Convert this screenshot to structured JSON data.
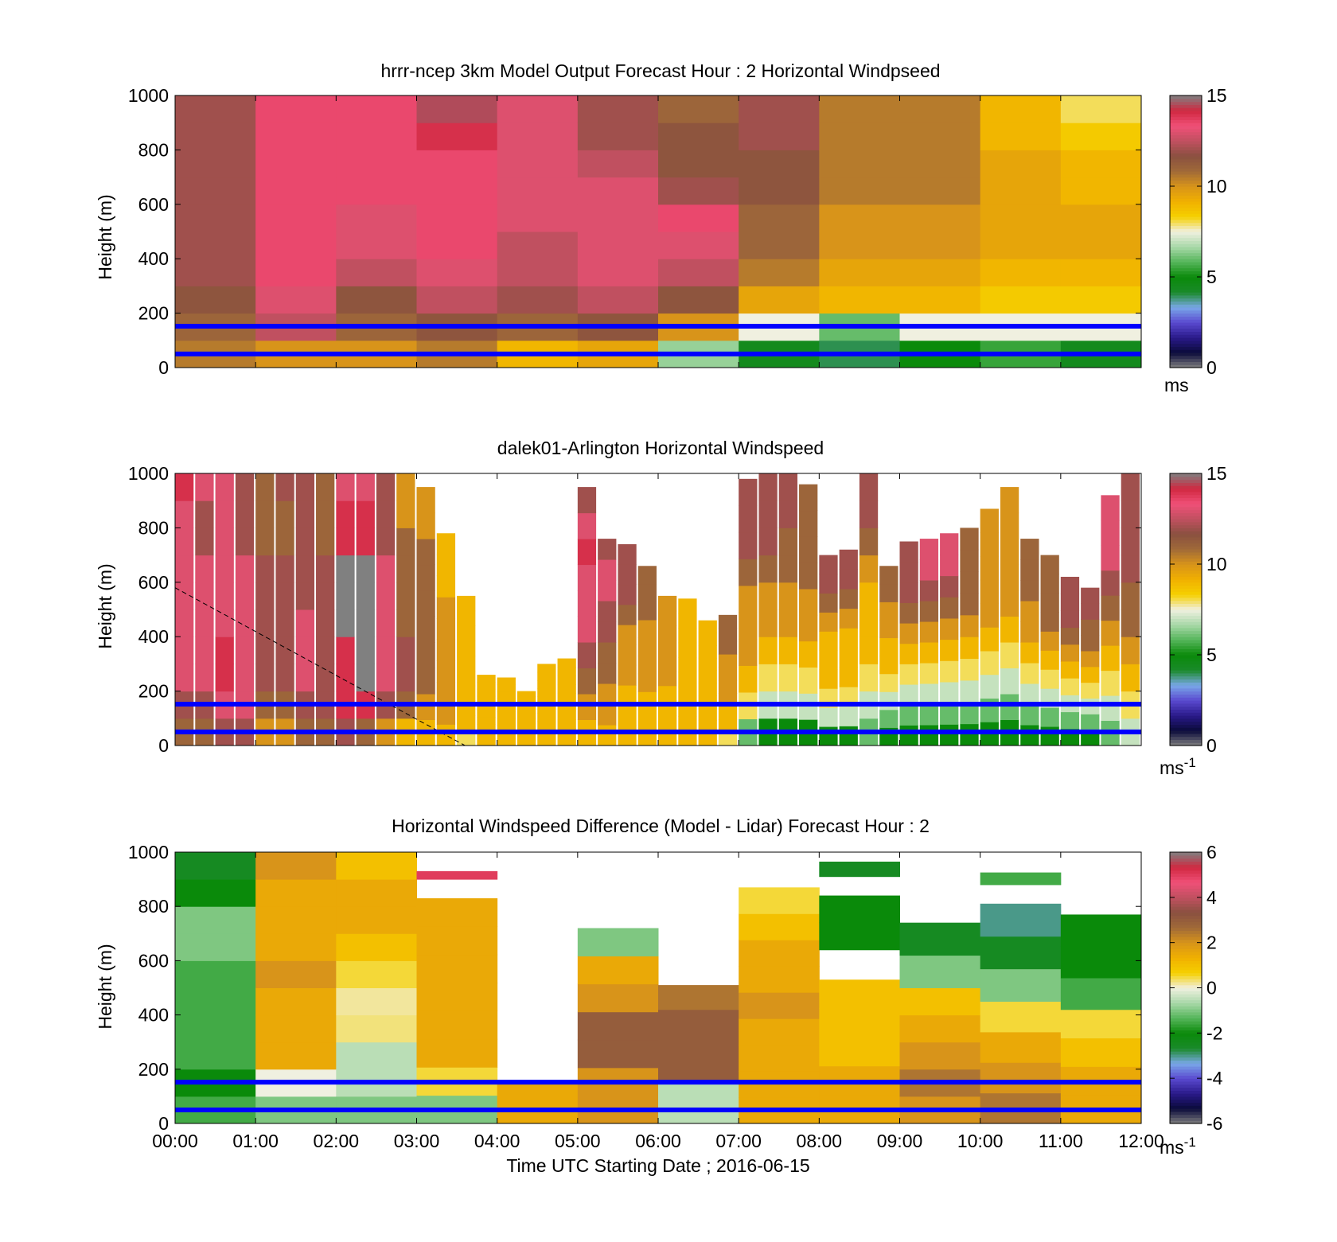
{
  "figure": {
    "xlabel": "Time UTC  Starting Date ; 2016-06-15",
    "x_ticks": [
      "00:00",
      "01:00",
      "02:00",
      "03:00",
      "04:00",
      "05:00",
      "06:00",
      "07:00",
      "08:00",
      "09:00",
      "10:00",
      "11:00",
      "12:00"
    ]
  },
  "colormap": [
    "#808080",
    "#0a0a3a",
    "#2a1a8a",
    "#5a4ad0",
    "#7aa8e8",
    "#1a8a2a",
    "#0a8a0a",
    "#55b55a",
    "#a8d8a8",
    "#f0f0e0",
    "#f5d000",
    "#f0b000",
    "#d8941a",
    "#a06a38",
    "#8a5040",
    "#c05060",
    "#f05078",
    "#d02840",
    "#808080"
  ],
  "chart_data": [
    {
      "type": "heatmap",
      "title": "hrrr-ncep 3km Model Output   Forecast Hour : 2 Horizontal Windpseed",
      "ylabel": "Height (m)",
      "xlim": [
        0,
        12
      ],
      "ylim": [
        0,
        1000
      ],
      "y_ticks": [
        0,
        200,
        400,
        600,
        800,
        1000
      ],
      "colorbar": {
        "ticks": [
          0,
          5,
          10,
          15
        ],
        "range": [
          0,
          15
        ],
        "unit": "ms"
      },
      "reference_lines_height_m": [
        152,
        50
      ],
      "columns_hour": [
        0,
        1,
        2,
        3,
        4,
        5,
        6,
        7,
        8,
        9,
        10,
        11
      ],
      "profiles_ms": [
        [
          10.5,
          11.0,
          11.5,
          12.0,
          12.0,
          12.0,
          12.0,
          12.0,
          12.0,
          12.0
        ],
        [
          10.0,
          12.5,
          13.0,
          13.5,
          13.5,
          13.5,
          13.5,
          13.5,
          13.5,
          13.5
        ],
        [
          10.0,
          11.0,
          11.5,
          12.5,
          13.0,
          13.0,
          13.5,
          13.5,
          13.5,
          13.5
        ],
        [
          10.5,
          11.5,
          12.5,
          13.0,
          13.5,
          13.5,
          13.5,
          13.5,
          14.0,
          14.5
        ],
        [
          9.0,
          11.0,
          12.0,
          12.5,
          12.5,
          13.0,
          13.0,
          13.0,
          13.0,
          13.0
        ],
        [
          9.5,
          11.5,
          12.5,
          13.0,
          13.0,
          13.0,
          13.0,
          12.5,
          12.0,
          12.0
        ],
        [
          6.5,
          10.0,
          11.5,
          12.5,
          13.0,
          13.5,
          12.0,
          11.5,
          11.5,
          11.0
        ],
        [
          4.5,
          7.5,
          9.5,
          10.5,
          11.0,
          11.0,
          11.5,
          11.5,
          12.0,
          12.0
        ],
        [
          4.0,
          6.0,
          9.0,
          9.5,
          10.0,
          10.0,
          10.5,
          10.5,
          10.5,
          10.5
        ],
        [
          5.0,
          7.5,
          9.0,
          9.5,
          10.0,
          10.0,
          10.5,
          10.5,
          10.5,
          10.5
        ],
        [
          5.5,
          7.5,
          8.5,
          9.0,
          9.5,
          9.5,
          9.5,
          9.5,
          9.0,
          9.0
        ],
        [
          4.5,
          7.5,
          8.5,
          9.0,
          9.5,
          9.5,
          9.0,
          9.0,
          8.5,
          8.0
        ]
      ]
    },
    {
      "type": "heatmap",
      "title": "dalek01-Arlington  Horizontal Windspeed",
      "ylabel": "Height (m)",
      "xlim": [
        0,
        12
      ],
      "ylim": [
        0,
        1000
      ],
      "y_ticks": [
        0,
        200,
        400,
        600,
        800,
        1000
      ],
      "colorbar": {
        "ticks": [
          0,
          5,
          10,
          15
        ],
        "range": [
          0,
          15
        ],
        "unit": "ms",
        "unit_exponent": "-1"
      },
      "reference_lines_height_m": [
        152,
        50
      ],
      "dashed_line": {
        "x": [
          0,
          3.6
        ],
        "y": [
          580,
          0
        ]
      },
      "columns_hour": [
        0.0,
        0.25,
        0.5,
        0.75,
        1.0,
        1.25,
        1.5,
        1.75,
        2.0,
        2.25,
        2.5,
        2.75,
        3.0,
        3.25,
        3.5,
        3.75,
        4.0,
        4.25,
        4.5,
        4.75,
        5.0,
        5.25,
        5.5,
        5.75,
        6.0,
        6.25,
        6.5,
        6.75,
        7.0,
        7.25,
        7.5,
        7.75,
        8.0,
        8.25,
        8.5,
        8.75,
        9.0,
        9.25,
        9.5,
        9.75,
        10.0,
        10.25,
        10.5,
        10.75,
        11.0,
        11.25,
        11.5,
        11.75
      ],
      "top_height_m": [
        1000,
        1000,
        1000,
        1000,
        1000,
        1000,
        1000,
        1000,
        1000,
        1000,
        1000,
        1000,
        950,
        780,
        550,
        260,
        250,
        200,
        300,
        320,
        950,
        760,
        740,
        660,
        550,
        540,
        460,
        480,
        980,
        1000,
        1000,
        960,
        700,
        720,
        1000,
        660,
        750,
        760,
        780,
        800,
        870,
        950,
        760,
        700,
        620,
        580,
        920,
        1000
      ],
      "profiles_ms": [
        [
          11,
          12,
          13,
          13,
          13,
          13,
          13,
          13,
          13,
          14
        ],
        [
          11,
          12,
          13,
          13,
          13,
          13,
          13,
          12,
          12,
          13
        ],
        [
          12,
          13,
          14,
          14,
          13,
          13,
          13,
          13,
          13,
          13
        ],
        [
          12,
          13,
          13,
          13,
          13,
          13,
          13,
          12,
          12,
          12
        ],
        [
          10,
          11,
          12,
          12,
          12,
          12,
          12,
          11,
          11,
          11
        ],
        [
          10,
          11,
          12,
          12,
          12,
          12,
          12,
          11,
          11,
          12
        ],
        [
          11,
          12,
          13,
          13,
          13,
          12,
          12,
          12,
          12,
          12
        ],
        [
          11,
          12,
          12,
          12,
          12,
          12,
          12,
          11,
          11,
          11
        ],
        [
          12,
          14,
          14,
          14,
          15,
          15,
          15,
          14,
          14,
          13
        ],
        [
          11,
          14,
          15,
          15,
          15,
          15,
          15,
          14,
          14,
          13
        ],
        [
          10,
          12,
          13,
          13,
          13,
          13,
          13,
          12,
          12,
          12
        ],
        [
          9,
          11,
          12,
          12,
          11,
          11,
          11,
          11,
          10,
          10
        ],
        [
          9,
          10,
          11,
          11,
          11,
          11,
          11,
          11,
          10,
          10
        ],
        [
          9,
          10,
          10,
          10,
          10,
          10,
          10,
          9,
          9,
          9
        ],
        [
          8,
          9,
          9,
          9,
          9,
          9,
          9,
          9,
          9,
          9
        ],
        [
          9,
          9,
          9,
          9,
          9,
          9,
          9,
          9,
          9,
          9
        ],
        [
          9,
          9,
          9,
          9,
          9,
          9,
          9,
          9,
          9,
          9
        ],
        [
          9,
          9,
          9,
          9,
          9,
          9,
          9,
          9,
          9,
          9
        ],
        [
          9,
          9,
          9,
          9,
          9,
          9,
          9,
          9,
          9,
          9
        ],
        [
          9,
          9,
          9,
          9,
          9,
          9,
          9,
          9,
          9,
          9
        ],
        [
          9,
          10,
          11,
          12,
          13,
          13,
          13,
          14,
          13,
          12
        ],
        [
          9,
          10,
          10,
          11,
          11,
          12,
          12,
          13,
          13,
          12
        ],
        [
          9,
          9,
          9,
          10,
          10,
          10,
          11,
          12,
          12,
          12
        ],
        [
          9,
          9,
          9,
          10,
          10,
          10,
          10,
          11,
          11,
          11
        ],
        [
          9,
          9,
          9,
          9,
          10,
          10,
          10,
          10,
          10,
          10
        ],
        [
          9,
          9,
          9,
          9,
          9,
          9,
          9,
          9,
          9,
          9
        ],
        [
          9,
          9,
          9,
          9,
          9,
          9,
          9,
          9,
          9,
          9
        ],
        [
          8,
          9,
          9,
          10,
          10,
          10,
          10,
          11,
          11,
          11
        ],
        [
          6,
          8,
          9,
          10,
          10,
          10,
          11,
          12,
          12,
          12
        ],
        [
          5,
          7,
          8,
          9,
          10,
          10,
          11,
          12,
          12,
          12
        ],
        [
          5,
          7,
          8,
          9,
          10,
          10,
          11,
          11,
          12,
          12
        ],
        [
          5,
          7,
          8,
          9,
          10,
          10,
          11,
          11,
          11,
          11
        ],
        [
          5,
          7,
          8,
          9,
          9,
          9,
          10,
          11,
          12,
          12
        ],
        [
          5,
          7,
          8,
          9,
          9,
          9,
          10,
          11,
          12,
          12
        ],
        [
          6,
          7,
          8,
          9,
          9,
          9,
          10,
          11,
          12,
          12
        ],
        [
          5,
          6,
          7,
          8,
          9,
          9,
          10,
          10,
          11,
          11
        ],
        [
          5,
          6,
          7,
          8,
          9,
          10,
          11,
          12,
          12,
          12
        ],
        [
          5,
          6,
          7,
          8,
          9,
          10,
          11,
          12,
          13,
          13
        ],
        [
          5,
          6,
          7,
          8,
          9,
          10,
          11,
          12,
          13,
          13
        ],
        [
          5,
          6,
          7,
          8,
          9,
          10,
          11,
          11,
          11,
          11
        ],
        [
          5,
          6,
          7,
          8,
          9,
          10,
          10,
          10,
          10,
          10
        ],
        [
          5,
          6,
          7,
          8,
          9,
          10,
          10,
          10,
          10,
          10
        ],
        [
          5,
          6,
          7,
          8,
          9,
          10,
          10,
          11,
          11,
          11
        ],
        [
          5,
          6,
          7,
          8,
          9,
          10,
          11,
          11,
          11,
          11
        ],
        [
          5,
          6,
          7,
          8,
          9,
          10,
          11,
          12,
          12,
          12
        ],
        [
          5,
          6,
          7,
          8,
          9,
          10,
          11,
          11,
          12,
          12
        ],
        [
          6,
          7,
          8,
          9,
          10,
          11,
          12,
          13,
          13,
          13
        ],
        [
          7,
          8,
          9,
          10,
          11,
          11,
          12,
          12,
          12,
          12
        ]
      ]
    },
    {
      "type": "heatmap",
      "title": "Horizontal Windspeed Difference (Model - Lidar) Forecast Hour : 2",
      "ylabel": "Height (m)",
      "xlim": [
        0,
        12
      ],
      "ylim": [
        0,
        1000
      ],
      "y_ticks": [
        0,
        200,
        400,
        600,
        800,
        1000
      ],
      "colorbar": {
        "ticks": [
          -6,
          -4,
          -2,
          0,
          2,
          4,
          6
        ],
        "range": [
          -6,
          6
        ],
        "unit": "ms",
        "unit_exponent": "-1"
      },
      "reference_lines_height_m": [
        152,
        50
      ],
      "columns_hour": [
        0,
        1,
        2,
        3,
        4,
        5,
        6,
        7,
        8,
        9,
        10,
        11
      ],
      "segments": [
        {
          "col": 0,
          "from": 0,
          "to": 1000,
          "values": [
            -1.5,
            -2,
            -1.5,
            -1.5,
            -1.5,
            -1.5,
            -1,
            -1,
            -2,
            -2.5
          ]
        },
        {
          "col": 1,
          "from": 0,
          "to": 1000,
          "values": [
            -1,
            0,
            1.5,
            1.5,
            1.5,
            2,
            1.5,
            1.5,
            1.5,
            2
          ]
        },
        {
          "col": 2,
          "from": 0,
          "to": 1000,
          "values": [
            -1,
            -0.5,
            -0.5,
            0.3,
            0.2,
            0.5,
            1,
            1.5,
            1.5,
            1
          ]
        },
        {
          "col": 3,
          "from": 0,
          "to": 830,
          "values": [
            -1,
            0.5,
            1.5,
            1.5,
            1.5,
            1.5,
            1.5,
            1.5
          ]
        },
        {
          "col": 3,
          "from": 900,
          "to": 930,
          "values": [
            5
          ]
        },
        {
          "col": 4,
          "from": 0,
          "to": 150,
          "values": [
            1.5
          ]
        },
        {
          "col": 5,
          "from": 0,
          "to": 720,
          "values": [
            2,
            2,
            3,
            3,
            2,
            1.5,
            -1
          ]
        },
        {
          "col": 6,
          "from": 0,
          "to": 150,
          "values": [
            -0.5
          ]
        },
        {
          "col": 6,
          "from": 150,
          "to": 510,
          "values": [
            3,
            3,
            3,
            2.5
          ]
        },
        {
          "col": 7,
          "from": 0,
          "to": 870,
          "values": [
            1.5,
            1.5,
            1.5,
            1.5,
            2,
            1.5,
            1.5,
            1,
            0.5
          ]
        },
        {
          "col": 8,
          "from": 0,
          "to": 530,
          "values": [
            1.5,
            1.5,
            1,
            1,
            1
          ]
        },
        {
          "col": 8,
          "from": 640,
          "to": 840,
          "values": [
            -2,
            -2
          ]
        },
        {
          "col": 8,
          "from": 910,
          "to": 965,
          "values": [
            -2.5
          ]
        },
        {
          "col": 9,
          "from": 0,
          "to": 500,
          "values": [
            2,
            2.5,
            2,
            1.5,
            1
          ]
        },
        {
          "col": 9,
          "from": 500,
          "to": 740,
          "values": [
            -1,
            -2.5
          ]
        },
        {
          "col": 10,
          "from": 0,
          "to": 450,
          "values": [
            2.5,
            2,
            1.5,
            0.5
          ]
        },
        {
          "col": 10,
          "from": 450,
          "to": 810,
          "values": [
            -1,
            -2.5,
            -3
          ]
        },
        {
          "col": 10,
          "from": 880,
          "to": 925,
          "values": [
            -1.5
          ]
        },
        {
          "col": 11,
          "from": 0,
          "to": 420,
          "values": [
            1.5,
            1.5,
            1,
            0.5
          ]
        },
        {
          "col": 11,
          "from": 420,
          "to": 770,
          "values": [
            -1.5,
            -2,
            -2
          ]
        }
      ]
    }
  ]
}
